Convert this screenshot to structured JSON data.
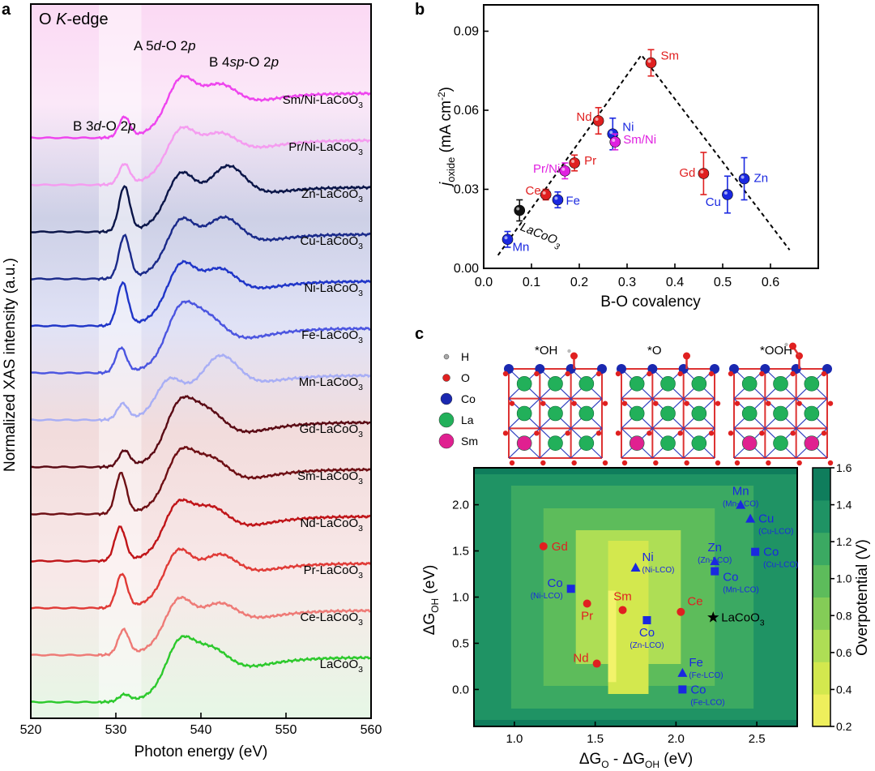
{
  "panel_labels": {
    "a": "a",
    "b": "b",
    "c": "c"
  },
  "chart_data": [
    {
      "panel": "a",
      "type": "line",
      "title": "O K-edge",
      "xlabel": "Photon energy (eV)",
      "ylabel": "Normalized XAS intensity (a.u.)",
      "xlim": [
        520,
        560
      ],
      "xticks": [
        "520",
        "530",
        "540",
        "550",
        "560"
      ],
      "annotations": [
        "B 3d-O 2p",
        "A 5d-O 2p",
        "B 4sp-O 2p"
      ],
      "shaded_regions_eV": [
        [
          528,
          533
        ]
      ],
      "series": [
        {
          "name": "Sm/Ni-LaCoO3",
          "color": "#ee44ee",
          "offset": 13,
          "peaks": [
            [
              531,
              0.45
            ],
            [
              537.5,
              1.0
            ],
            [
              542,
              0.75
            ]
          ]
        },
        {
          "name": "Pr/Ni-LaCoO3",
          "color": "#f59cf0",
          "offset": 12,
          "peaks": [
            [
              531,
              0.45
            ],
            [
              537.5,
              0.9
            ],
            [
              542,
              0.7
            ]
          ]
        },
        {
          "name": "Zn-LaCoO3",
          "color": "#0a1548",
          "offset": 11,
          "peaks": [
            [
              531,
              1.0
            ],
            [
              537.5,
              1.0
            ],
            [
              543,
              1.05
            ]
          ]
        },
        {
          "name": "Cu-LaCoO3",
          "color": "#1a2a8a",
          "offset": 10,
          "peaks": [
            [
              531,
              0.95
            ],
            [
              537.5,
              1.0
            ],
            [
              542.5,
              0.95
            ]
          ]
        },
        {
          "name": "Ni-LaCoO3",
          "color": "#1f35c8",
          "offset": 9,
          "peaks": [
            [
              530.8,
              0.95
            ],
            [
              537.5,
              1.05
            ],
            [
              542,
              0.85
            ]
          ]
        },
        {
          "name": "Fe-LaCoO3",
          "color": "#4b55e0",
          "offset": 8,
          "peaks": [
            [
              530.6,
              0.55
            ],
            [
              537.3,
              1.0
            ],
            [
              540.5,
              0.9
            ]
          ]
        },
        {
          "name": "Mn-LaCoO3",
          "color": "#a8aef5",
          "offset": 7,
          "peaks": [
            [
              530.8,
              0.35
            ],
            [
              535.8,
              0.75
            ],
            [
              542.2,
              1.05
            ]
          ]
        },
        {
          "name": "Gd-LaCoO3",
          "color": "#5a0a14",
          "offset": 6,
          "peaks": [
            [
              531,
              0.35
            ],
            [
              537.2,
              1.0
            ],
            [
              540.5,
              0.9
            ]
          ]
        },
        {
          "name": "Sm-LaCoO3",
          "color": "#6e0f14",
          "offset": 5,
          "peaks": [
            [
              530.6,
              0.9
            ],
            [
              537.3,
              1.0
            ],
            [
              541,
              0.85
            ]
          ]
        },
        {
          "name": "Nd-LaCoO3",
          "color": "#c01418",
          "offset": 4,
          "peaks": [
            [
              530.5,
              0.75
            ],
            [
              537,
              0.95
            ],
            [
              541,
              0.8
            ]
          ]
        },
        {
          "name": "Pr-LaCoO3",
          "color": "#e03a36",
          "offset": 3,
          "peaks": [
            [
              530.7,
              0.75
            ],
            [
              537.1,
              1.0
            ],
            [
              542,
              0.75
            ]
          ]
        },
        {
          "name": "Ce-LaCoO3",
          "color": "#ee7a76",
          "offset": 2,
          "peaks": [
            [
              530.9,
              0.55
            ],
            [
              537.2,
              0.95
            ],
            [
              542,
              0.7
            ]
          ]
        },
        {
          "name": "LaCoO3",
          "color": "#2cc92c",
          "offset": 1,
          "peaks": [
            [
              531,
              0.15
            ],
            [
              537.3,
              1.0
            ],
            [
              541,
              0.8
            ]
          ]
        }
      ]
    },
    {
      "panel": "b",
      "type": "scatter",
      "xlabel": "B-O covalency",
      "ylabel": "j_oxide (mA cm-2)",
      "xlim": [
        0.0,
        0.7
      ],
      "ylim": [
        0.0,
        0.1
      ],
      "xticks": [
        "0.0",
        "0.1",
        "0.2",
        "0.3",
        "0.4",
        "0.5",
        "0.6"
      ],
      "yticks": [
        "0.00",
        "0.03",
        "0.06",
        "0.09"
      ],
      "trend_line": [
        [
          0.03,
          0.005
        ],
        [
          0.33,
          0.081
        ],
        [
          0.64,
          0.007
        ]
      ],
      "points": [
        {
          "label": "Sm",
          "x": 0.35,
          "y": 0.078,
          "err": 0.005,
          "color": "#e02020"
        },
        {
          "label": "Nd",
          "x": 0.24,
          "y": 0.056,
          "err": 0.005,
          "color": "#e02020"
        },
        {
          "label": "Ni",
          "x": 0.27,
          "y": 0.051,
          "err": 0.006,
          "color": "#1a28e0"
        },
        {
          "label": "Sm/Ni",
          "x": 0.275,
          "y": 0.048,
          "err": 0.003,
          "color": "#e020e0"
        },
        {
          "label": "Pr",
          "x": 0.19,
          "y": 0.04,
          "err": 0.003,
          "color": "#e02020"
        },
        {
          "label": "Pr/Ni",
          "x": 0.17,
          "y": 0.037,
          "err": 0.003,
          "color": "#e020e0"
        },
        {
          "label": "Ce",
          "x": 0.13,
          "y": 0.028,
          "err": 0.002,
          "color": "#e02020"
        },
        {
          "label": "Fe",
          "x": 0.155,
          "y": 0.026,
          "err": 0.003,
          "color": "#1a28e0"
        },
        {
          "label": "Gd",
          "x": 0.46,
          "y": 0.036,
          "err": 0.008,
          "color": "#e02020"
        },
        {
          "label": "Zn",
          "x": 0.545,
          "y": 0.034,
          "err": 0.008,
          "color": "#1a28e0"
        },
        {
          "label": "Cu",
          "x": 0.51,
          "y": 0.028,
          "err": 0.007,
          "color": "#1a28e0"
        },
        {
          "label": "LaCoO3",
          "x": 0.075,
          "y": 0.022,
          "err": 0.004,
          "color": "#111111"
        },
        {
          "label": "Mn",
          "x": 0.05,
          "y": 0.011,
          "err": 0.003,
          "color": "#1a28e0"
        }
      ]
    },
    {
      "panel": "c",
      "type": "heatmap",
      "xlabel": "ΔG_O - ΔG_OH (eV)",
      "ylabel": "ΔG_OH (eV)",
      "xlim": [
        0.75,
        2.75
      ],
      "ylim": [
        -0.4,
        2.4
      ],
      "xticks": [
        "1.0",
        "1.5",
        "2.0",
        "2.5"
      ],
      "yticks": [
        "0.0",
        "0.5",
        "1.0",
        "1.5",
        "2.0"
      ],
      "colorbar": {
        "label": "Overpotential (V)",
        "ticks": [
          "0.2",
          "0.4",
          "0.6",
          "0.8",
          "1.0",
          "1.2",
          "1.4",
          "1.6"
        ],
        "colors": [
          "#eeef5c",
          "#d3e84e",
          "#aede55",
          "#84cc57",
          "#5dbc5b",
          "#3ba962",
          "#1f9364",
          "#0f7d5c"
        ]
      },
      "contour_levels": [
        {
          "x": [
            0.75,
            2.75
          ],
          "color": "#1f9364"
        },
        {
          "x": [
            0.98,
            2.48
          ],
          "color": "#3ba962"
        },
        {
          "x": [
            1.18,
            2.24
          ],
          "color": "#5dbc5b"
        },
        {
          "x": [
            1.38,
            2.03
          ],
          "color": "#aede55"
        },
        {
          "x": [
            1.58,
            1.83
          ],
          "color": "#d3e84e"
        }
      ],
      "structures": {
        "legend": [
          "H",
          "O",
          "Co",
          "La",
          "Sm"
        ],
        "legend_colors": [
          "#aaaaaa",
          "#e02020",
          "#1a28b0",
          "#22b05a",
          "#e02090"
        ],
        "titles": [
          "*OH",
          "*O",
          "*OOH"
        ]
      },
      "points": [
        {
          "label": "Gd",
          "sub": "",
          "x": 1.18,
          "y": 1.55,
          "marker": "circle",
          "color": "#e02020",
          "label_pos": "right"
        },
        {
          "label": "Pr",
          "sub": "",
          "x": 1.45,
          "y": 0.93,
          "marker": "circle",
          "color": "#e02020",
          "label_pos": "below"
        },
        {
          "label": "Sm",
          "sub": "",
          "x": 1.67,
          "y": 0.86,
          "marker": "circle",
          "color": "#e02020",
          "label_pos": "above"
        },
        {
          "label": "Nd",
          "sub": "",
          "x": 1.51,
          "y": 0.28,
          "marker": "circle",
          "color": "#e02020",
          "label_pos": "left"
        },
        {
          "label": "Ce",
          "sub": "",
          "x": 2.03,
          "y": 0.84,
          "marker": "circle",
          "color": "#e02020",
          "label_pos": "right-up"
        },
        {
          "label": "Co",
          "sub": "(Ni-LCO)",
          "x": 1.35,
          "y": 1.09,
          "marker": "square",
          "color": "#1a28e0",
          "label_pos": "left"
        },
        {
          "label": "Ni",
          "sub": "(Ni-LCO)",
          "x": 1.75,
          "y": 1.32,
          "marker": "triangle",
          "color": "#1a28e0",
          "label_pos": "right-up"
        },
        {
          "label": "Co",
          "sub": "(Zn-LCO)",
          "x": 1.82,
          "y": 0.75,
          "marker": "square",
          "color": "#1a28e0",
          "label_pos": "below"
        },
        {
          "label": "Zn",
          "sub": "(Zn-LCO)",
          "x": 2.24,
          "y": 1.39,
          "marker": "triangle",
          "color": "#1a28e0",
          "label_pos": "above"
        },
        {
          "label": "Co",
          "sub": "(Mn-LCO)",
          "x": 2.24,
          "y": 1.28,
          "marker": "square",
          "color": "#1a28e0",
          "label_pos": "right-down"
        },
        {
          "label": "Mn",
          "sub": "(Mn-LCO)",
          "x": 2.4,
          "y": 2.0,
          "marker": "triangle",
          "color": "#1a28e0",
          "label_pos": "above"
        },
        {
          "label": "Cu",
          "sub": "(Cu-LCO)",
          "x": 2.46,
          "y": 1.85,
          "marker": "triangle",
          "color": "#1a28e0",
          "label_pos": "right"
        },
        {
          "label": "Co",
          "sub": "(Cu-LCO)",
          "x": 2.49,
          "y": 1.49,
          "marker": "square",
          "color": "#1a28e0",
          "label_pos": "right"
        },
        {
          "label": "Fe",
          "sub": "(Fe-LCO)",
          "x": 2.04,
          "y": 0.18,
          "marker": "triangle",
          "color": "#1a28e0",
          "label_pos": "right-up"
        },
        {
          "label": "Co",
          "sub": "(Fe-LCO)",
          "x": 2.04,
          "y": 0.0,
          "marker": "square",
          "color": "#1a28e0",
          "label_pos": "right"
        },
        {
          "label": "LaCoO3",
          "sub": "",
          "x": 2.23,
          "y": 0.78,
          "marker": "star",
          "color": "#000000",
          "label_pos": "right"
        }
      ]
    }
  ]
}
